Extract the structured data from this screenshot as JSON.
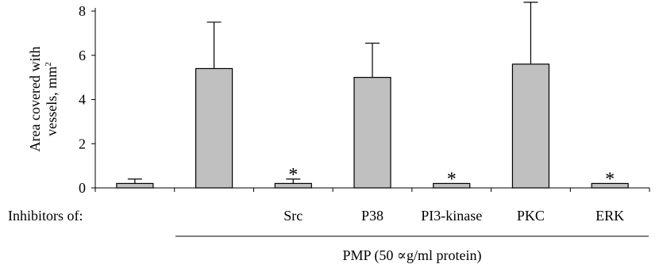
{
  "chart_data": {
    "type": "bar",
    "ylabel_line1": "Area covered with",
    "ylabel_line2": "vessels, mm",
    "ylabel_sup": "2",
    "ylim": [
      0,
      8
    ],
    "yticks": [
      0,
      2,
      4,
      6,
      8
    ],
    "row_label": "Inhibitors of:",
    "categories": [
      "",
      "",
      "Src",
      "P38",
      "PI3-kinase",
      "PKC",
      "ERK"
    ],
    "values": [
      0.2,
      5.4,
      0.2,
      5.0,
      0.2,
      5.6,
      0.2
    ],
    "errors": [
      0.2,
      2.1,
      0.2,
      1.55,
      0.0,
      2.8,
      0.0
    ],
    "significance": [
      "",
      "",
      "*",
      "",
      "*",
      "",
      "*"
    ],
    "group_label": "PMP (50 ∝g/ml protein)",
    "colors": {
      "bar_fill": "#c0c0c0",
      "stroke": "#000000"
    }
  }
}
